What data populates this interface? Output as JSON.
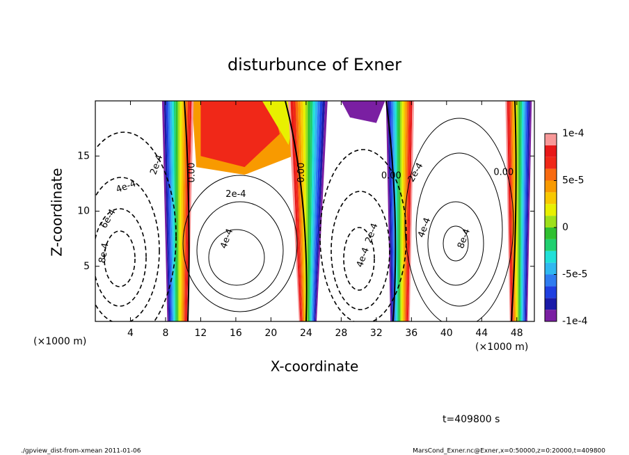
{
  "chart_data": {
    "type": "contour",
    "title": "disturbunce of Exner",
    "x_label": "X-coordinate",
    "y_label": "Z-coordinate",
    "x_unit": "(×1000 m)",
    "x_unit_right": "(×1000 m)",
    "xlim": [
      0,
      50
    ],
    "ylim": [
      0,
      20
    ],
    "xticks": [
      4,
      8,
      12,
      16,
      20,
      24,
      28,
      32,
      36,
      40,
      44,
      48
    ],
    "yticks": [
      5,
      10,
      15
    ],
    "colorbar": {
      "lim": [
        -0.0001,
        0.0001
      ],
      "ticks": [
        {
          "value": 0.0001,
          "label": "1e-4"
        },
        {
          "value": 5e-05,
          "label": "5e-5"
        },
        0,
        {
          "value": -5e-05,
          "label": "-5e-5"
        },
        {
          "value": -0.0001,
          "label": "-1e-4"
        }
      ],
      "levels": [
        -0.0001,
        -8.75e-05,
        -7.5e-05,
        -6.25e-05,
        -5e-05,
        -3.75e-05,
        -2.5e-05,
        -1.25e-05,
        0,
        1.25e-05,
        2.5e-05,
        3.75e-05,
        5e-05,
        6.25e-05,
        7.5e-05,
        8.75e-05,
        0.0001
      ],
      "colors": [
        "#7a1fa2",
        "#1a1aa8",
        "#1f3fe0",
        "#2f7cf0",
        "#2fb8f0",
        "#20e0d8",
        "#20d070",
        "#30c030",
        "#9ee01a",
        "#e8f000",
        "#f8c800",
        "#f89a00",
        "#f86a10",
        "#f02818",
        "#e81818",
        "#f89898"
      ]
    },
    "contour_labels": [
      "2e-4",
      "4e-4",
      "6e-4",
      "8e-4",
      "0.00",
      "2e-4",
      "4e-4",
      "0.00",
      "2e-4",
      "4e-4",
      "0.00",
      "2e-4",
      "4e-4",
      "8e-4",
      "0.00"
    ],
    "time_label": "t=409800 s",
    "footer_left": "./gpview_dist-from-xmean  2011-01-06",
    "footer_right": "MarsCond_Exner.nc@Exner,x=0:50000,z=0:20000,t=409800"
  }
}
